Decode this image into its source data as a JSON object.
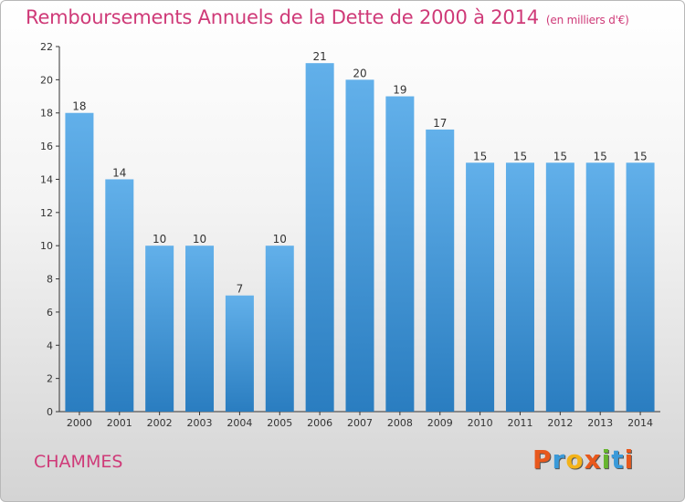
{
  "header": {
    "title": "Remboursements Annuels de la Dette de 2000 à 2014",
    "unit": "(en milliers d'€)"
  },
  "footer": {
    "town": "CHAMMES"
  },
  "logo": {
    "letters": [
      "P",
      "r",
      "o",
      "x",
      "i",
      "t",
      "i"
    ],
    "colors": [
      "#e8581c",
      "#3a9ad9",
      "#f3b31a",
      "#e8581c",
      "#67b52f",
      "#3a9ad9",
      "#e8581c"
    ]
  },
  "chart_data": {
    "type": "bar",
    "categories": [
      "2000",
      "2001",
      "2002",
      "2003",
      "2004",
      "2005",
      "2006",
      "2007",
      "2008",
      "2009",
      "2010",
      "2011",
      "2012",
      "2013",
      "2014"
    ],
    "values": [
      18,
      14,
      10,
      10,
      7,
      10,
      21,
      20,
      19,
      17,
      15,
      15,
      15,
      15,
      15
    ],
    "title": "Remboursements Annuels de la Dette de 2000 à 2014",
    "ylim": [
      0,
      22
    ],
    "yticks": [
      0,
      2,
      4,
      6,
      8,
      10,
      12,
      14,
      16,
      18,
      20,
      22
    ],
    "grid": false,
    "bar_color_top": "#62b0ea",
    "bar_color_bottom": "#2a7dc0"
  }
}
